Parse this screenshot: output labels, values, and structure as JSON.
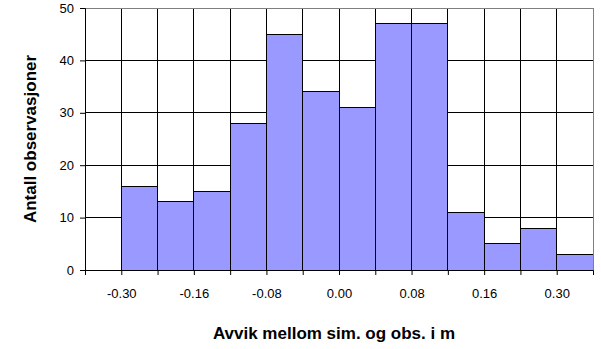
{
  "chart_data": {
    "type": "bar",
    "x_label": "Avvik mellom sim. og obs. i m",
    "y_label": "Antall observasjoner",
    "categories": [
      null,
      "-0.30",
      null,
      "-0.16",
      null,
      "-0.08",
      null,
      "0.00",
      null,
      "0.08",
      null,
      "0.16",
      null,
      "0.30"
    ],
    "values": [
      0,
      16,
      13,
      15,
      28,
      45,
      34,
      31,
      47,
      47,
      11,
      5,
      8,
      3
    ],
    "color": "#9999ff",
    "ylim": [
      0,
      50
    ],
    "yticks": [
      0,
      10,
      20,
      30,
      40,
      50
    ],
    "grid": true
  }
}
